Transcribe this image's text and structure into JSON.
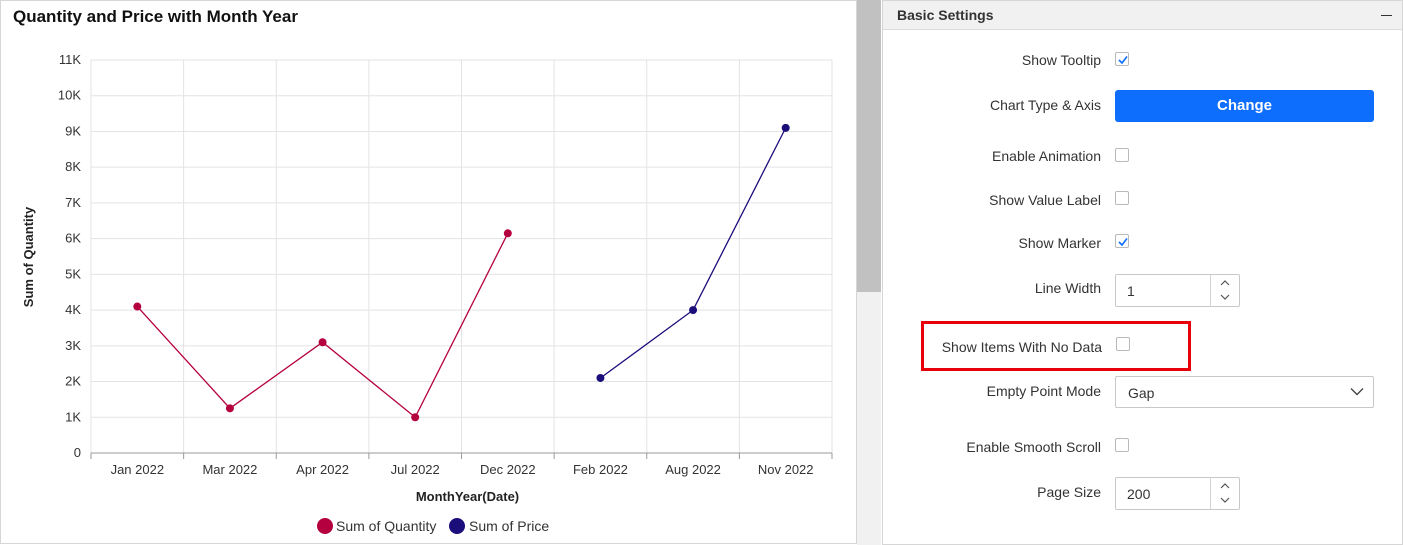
{
  "chart": {
    "title": "Quantity and Price with Month Year"
  },
  "chart_data": {
    "type": "line",
    "title": "Quantity and Price with Month Year",
    "xlabel": "MonthYear(Date)",
    "ylabel": "Sum of Quantity",
    "categories": [
      "Jan 2022",
      "Mar 2022",
      "Apr 2022",
      "Jul 2022",
      "Dec 2022",
      "Feb 2022",
      "Aug 2022",
      "Nov 2022"
    ],
    "y_ticks": [
      "0",
      "1K",
      "2K",
      "3K",
      "4K",
      "5K",
      "6K",
      "7K",
      "8K",
      "9K",
      "10K",
      "11K"
    ],
    "ylim": [
      0,
      11000
    ],
    "grid": true,
    "legend_position": "bottom",
    "series": [
      {
        "name": "Sum of Quantity",
        "color": "#b5003f",
        "values": [
          4100,
          1250,
          3100,
          1000,
          6150,
          null,
          null,
          null
        ]
      },
      {
        "name": "Sum of Price",
        "color": "#1b0d7a",
        "values": [
          null,
          null,
          null,
          null,
          null,
          2100,
          4000,
          9100
        ]
      }
    ]
  },
  "settings": {
    "title": "Basic Settings",
    "collapse_icon": "minus-icon",
    "show_tooltip": {
      "label": "Show Tooltip",
      "checked": true
    },
    "chart_type_axis": {
      "label": "Chart Type & Axis",
      "button": "Change"
    },
    "enable_animation": {
      "label": "Enable Animation",
      "checked": false
    },
    "show_value_label": {
      "label": "Show Value Label",
      "checked": false
    },
    "show_marker": {
      "label": "Show Marker",
      "checked": true
    },
    "line_width": {
      "label": "Line Width",
      "value": "1"
    },
    "show_items_no_data": {
      "label": "Show Items With No Data",
      "checked": false
    },
    "empty_point_mode": {
      "label": "Empty Point Mode",
      "value": "Gap"
    },
    "enable_smooth_scroll": {
      "label": "Enable Smooth Scroll",
      "checked": false
    },
    "page_size": {
      "label": "Page Size",
      "value": "200"
    },
    "accent_color": "#0d6efd",
    "highlight_color": "#e8000b"
  }
}
